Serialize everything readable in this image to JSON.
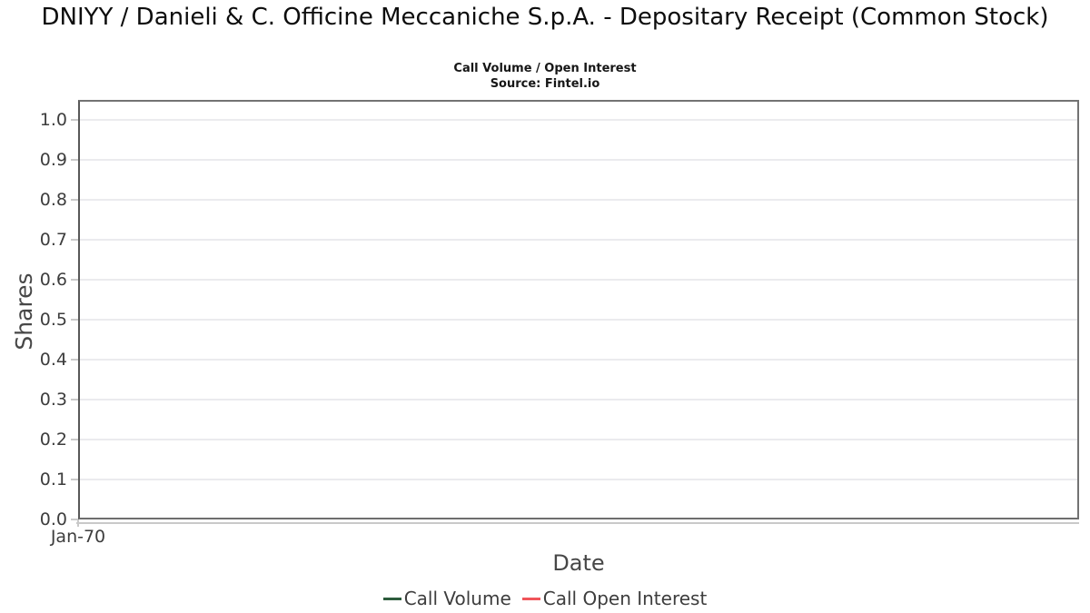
{
  "chart_data": {
    "type": "line",
    "title": "DNIYY / Danieli & C. Officine Meccaniche S.p.A. - Depositary Receipt (Common Stock)",
    "subtitle": "Call Volume / Open Interest",
    "source": "Source: Fintel.io",
    "xlabel": "Date",
    "ylabel": "Shares",
    "ylim": [
      0.0,
      1.05
    ],
    "yticks": [
      0.0,
      0.1,
      0.2,
      0.3,
      0.4,
      0.5,
      0.6,
      0.7,
      0.8,
      0.9,
      1.0
    ],
    "xticks": [
      "Jan-70"
    ],
    "grid": "horizontal",
    "legend_position": "bottom",
    "series": [
      {
        "name": "Call Volume",
        "color": "#2d5c3c",
        "x": [],
        "values": []
      },
      {
        "name": "Call Open Interest",
        "color": "#f0555a",
        "x": [],
        "values": []
      }
    ],
    "colors": {
      "plot_border": "#737373",
      "gridline": "#ebebee",
      "tick_mark": "#c9c9c9",
      "tick_label": "#3d3d3d"
    }
  }
}
